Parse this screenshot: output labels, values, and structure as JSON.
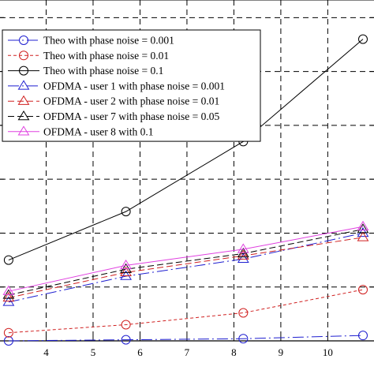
{
  "chart_data": {
    "type": "line",
    "title": "",
    "xlabel": "",
    "ylabel": "",
    "x_visible_range": [
      3.0,
      10.75
    ],
    "y_visible_range": [
      0.0,
      6.4
    ],
    "xticks": [
      4,
      5,
      6,
      7,
      8,
      9,
      10
    ],
    "xtick_labels": [
      "4",
      "5",
      "6",
      "7",
      "8",
      "9",
      "10"
    ],
    "yticks": [
      0,
      1,
      2,
      3,
      4,
      5,
      6
    ],
    "grid": true,
    "grid_style": "dashed",
    "legend_position": "top-left",
    "series": [
      {
        "name": "Theo with phase noise = 0.001",
        "color": "#1f1fd0",
        "dash": "long-dash-dot",
        "marker": "circle",
        "x": [
          3.2,
          5.7,
          8.2,
          10.75
        ],
        "y": [
          0.0,
          0.02,
          0.04,
          0.1
        ]
      },
      {
        "name": "Theo with phase noise = 0.01",
        "color": "#d02020",
        "dash": "short-dash",
        "marker": "circle",
        "x": [
          3.2,
          5.7,
          8.2,
          10.75
        ],
        "y": [
          0.15,
          0.3,
          0.52,
          0.95
        ]
      },
      {
        "name": "Theo with phase noise = 0.1",
        "color": "#000000",
        "dash": "solid",
        "marker": "circle",
        "x": [
          3.2,
          5.7,
          8.2,
          10.75
        ],
        "y": [
          1.5,
          2.4,
          3.7,
          5.6
        ]
      },
      {
        "name": "OFDMA - user 1 with phase noise = 0.001",
        "color": "#1f1fd0",
        "dash": "long-dash-dot",
        "marker": "triangle",
        "x": [
          3.2,
          5.7,
          8.2,
          10.75
        ],
        "y": [
          0.72,
          1.2,
          1.52,
          2.0
        ]
      },
      {
        "name": "OFDMA - user 2 with phase noise = 0.01",
        "color": "#d02020",
        "dash": "dash",
        "marker": "triangle",
        "x": [
          3.2,
          5.7,
          8.2,
          10.75
        ],
        "y": [
          0.8,
          1.27,
          1.58,
          1.92
        ]
      },
      {
        "name": "OFDMA - user 7  with phase noise = 0.05",
        "color": "#000000",
        "dash": "dash",
        "marker": "triangle",
        "x": [
          3.2,
          5.7,
          8.2,
          10.75
        ],
        "y": [
          0.85,
          1.33,
          1.62,
          2.07
        ]
      },
      {
        "name": "OFDMA - user 8 with 0.1",
        "color": "#e040e0",
        "dash": "solid",
        "marker": "triangle",
        "x": [
          3.2,
          5.7,
          8.2,
          10.75
        ],
        "y": [
          0.92,
          1.4,
          1.7,
          2.12
        ]
      }
    ]
  }
}
